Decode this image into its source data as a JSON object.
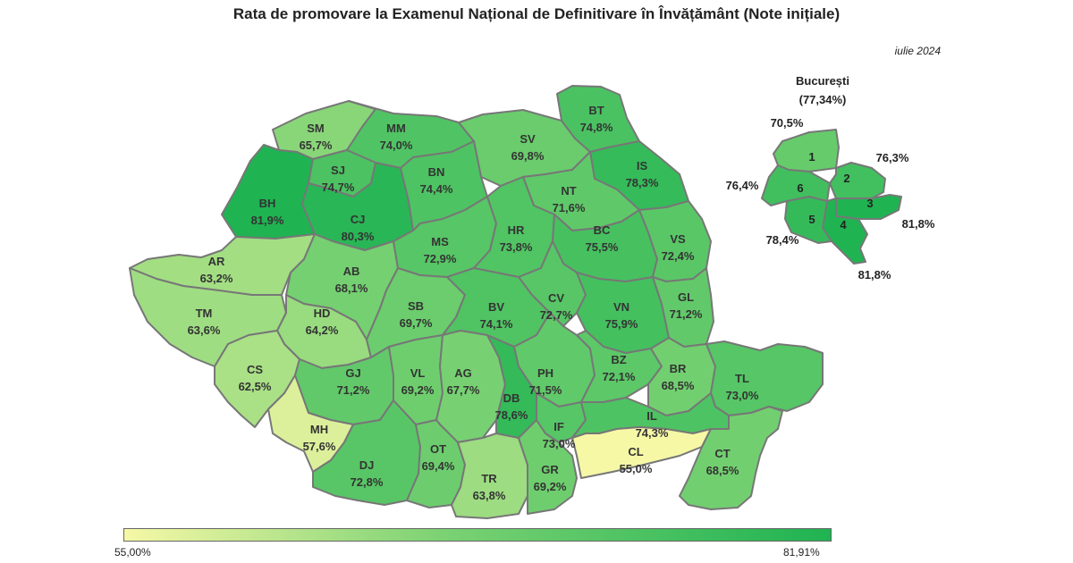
{
  "title": "Rata de promovare la Examenul Național de Definitivare în Învățământ (Note inițiale)",
  "date": "iulie 2024",
  "bucharest": {
    "title": "București",
    "total": "(77,34%)"
  },
  "counties": [
    {
      "code": "SM",
      "value": "65,7%"
    },
    {
      "code": "MM",
      "value": "74,0%"
    },
    {
      "code": "BT",
      "value": "74,8%"
    },
    {
      "code": "SV",
      "value": "69,8%"
    },
    {
      "code": "BH",
      "value": "81,9%"
    },
    {
      "code": "SJ",
      "value": "74,7%"
    },
    {
      "code": "CJ",
      "value": "80,3%"
    },
    {
      "code": "BN",
      "value": "74,4%"
    },
    {
      "code": "IS",
      "value": "78,3%"
    },
    {
      "code": "NT",
      "value": "71,6%"
    },
    {
      "code": "AR",
      "value": "63,2%"
    },
    {
      "code": "AB",
      "value": "68,1%"
    },
    {
      "code": "MS",
      "value": "72,9%"
    },
    {
      "code": "HR",
      "value": "73,8%"
    },
    {
      "code": "BC",
      "value": "75,5%"
    },
    {
      "code": "VS",
      "value": "72,4%"
    },
    {
      "code": "TM",
      "value": "63,6%"
    },
    {
      "code": "HD",
      "value": "64,2%"
    },
    {
      "code": "SB",
      "value": "69,7%"
    },
    {
      "code": "BV",
      "value": "74,1%"
    },
    {
      "code": "CV",
      "value": "72,7%"
    },
    {
      "code": "VN",
      "value": "75,9%"
    },
    {
      "code": "GL",
      "value": "71,2%"
    },
    {
      "code": "CS",
      "value": "62,5%"
    },
    {
      "code": "GJ",
      "value": "71,2%"
    },
    {
      "code": "VL",
      "value": "69,2%"
    },
    {
      "code": "AG",
      "value": "67,7%"
    },
    {
      "code": "DB",
      "value": "78,6%"
    },
    {
      "code": "PH",
      "value": "71,5%"
    },
    {
      "code": "BZ",
      "value": "72,1%"
    },
    {
      "code": "BR",
      "value": "68,5%"
    },
    {
      "code": "TL",
      "value": "73,0%"
    },
    {
      "code": "MH",
      "value": "57,6%"
    },
    {
      "code": "DJ",
      "value": "72,8%"
    },
    {
      "code": "OT",
      "value": "69,4%"
    },
    {
      "code": "TR",
      "value": "63,8%"
    },
    {
      "code": "GR",
      "value": "69,2%"
    },
    {
      "code": "IF",
      "value": "73,0%"
    },
    {
      "code": "IL",
      "value": "74,3%"
    },
    {
      "code": "CL",
      "value": "55,0%"
    },
    {
      "code": "CT",
      "value": "68,5%"
    }
  ],
  "sectors": [
    {
      "num": "1",
      "value": "70,5%"
    },
    {
      "num": "2",
      "value": "76,3%"
    },
    {
      "num": "3",
      "value": "81,8%"
    },
    {
      "num": "4",
      "value": "81,8%"
    },
    {
      "num": "5",
      "value": "78,4%"
    },
    {
      "num": "6",
      "value": "76,4%"
    }
  ],
  "legend": {
    "min": "55,00%",
    "max": "81,91%",
    "min_color": "#f6f8a6",
    "max_color": "#1fb352"
  }
}
